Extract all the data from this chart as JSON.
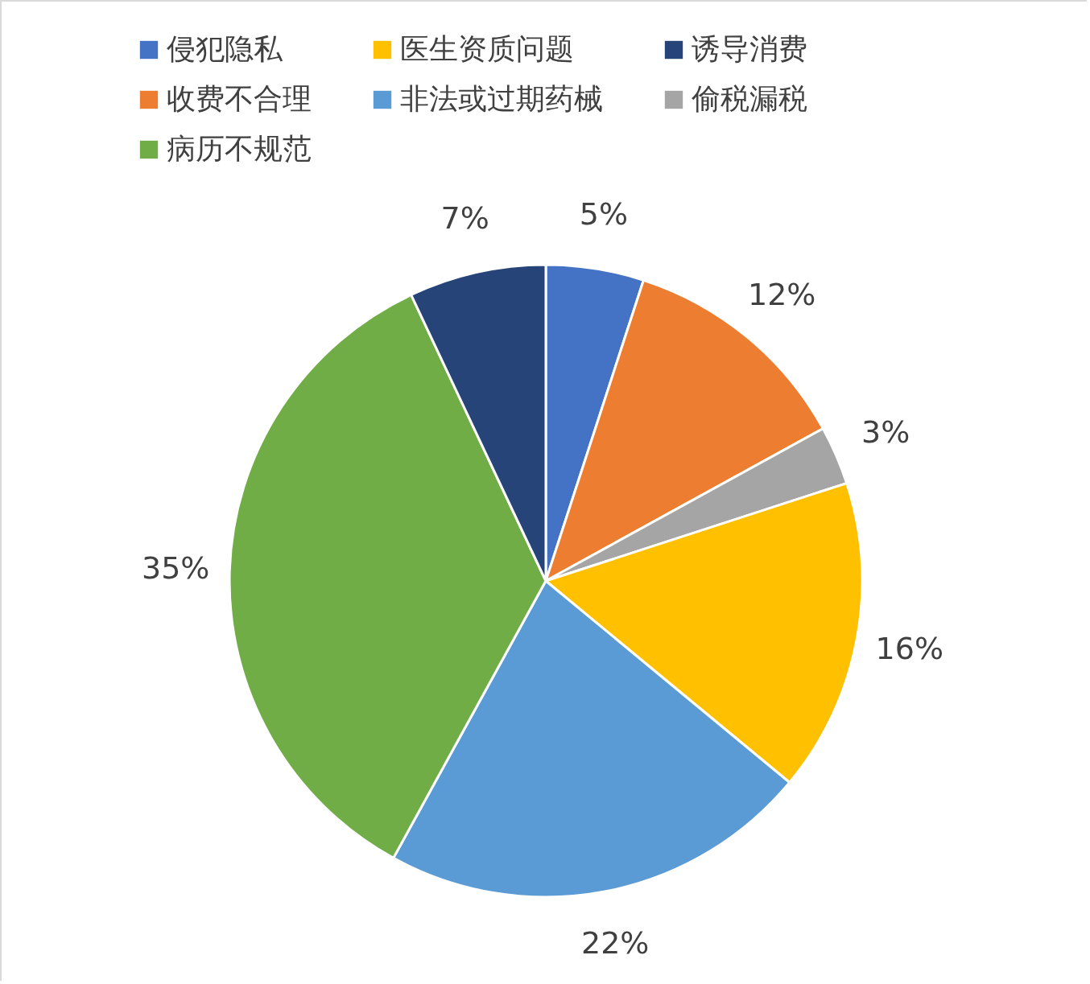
{
  "chart_data": {
    "type": "pie",
    "categories": [
      "侵犯隐私",
      "收费不合理",
      "偷税漏税",
      "医生资质问题",
      "非法或过期药械",
      "病历不规范",
      "诱导消费"
    ],
    "values": [
      5,
      12,
      3,
      16,
      22,
      35,
      7
    ],
    "colors": [
      "#4472c4",
      "#ed7d31",
      "#a5a5a5",
      "#ffc000",
      "#5b9bd5",
      "#70ad47",
      "#264478"
    ],
    "value_labels": [
      "5%",
      "12%",
      "3%",
      "16%",
      "22%",
      "35%",
      "7%"
    ],
    "legend": "top"
  }
}
